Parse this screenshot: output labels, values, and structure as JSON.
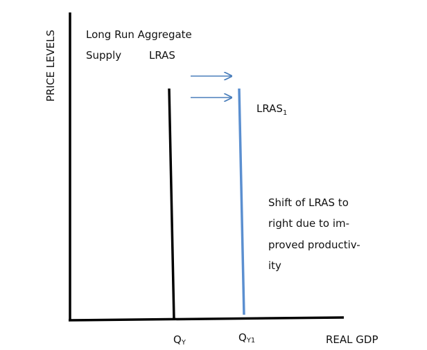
{
  "axes": {
    "y_label": "PRICE LEVELS",
    "x_label": "REAL GDP"
  },
  "heading": [
    "Long Run Aggregate",
    "Supply"
  ],
  "curves": [
    {
      "label": "LRAS"
    },
    {
      "label": "LRAS",
      "subscript": "1"
    }
  ],
  "annotation": [
    "Shift of LRAS to",
    "right due to im-",
    "proved productiv-",
    "ity"
  ],
  "x_labels": [
    {
      "text": "Q",
      "subscript": "Y"
    },
    {
      "text": "Q",
      "subscript": "Y1"
    }
  ]
}
